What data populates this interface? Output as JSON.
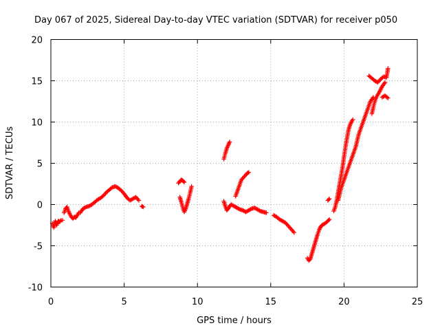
{
  "chart_data": {
    "type": "scatter",
    "title": "Day 067 of 2025, Sidereal Day-to-day VTEC variation (SDTVAR) for receiver p050",
    "xlabel": "GPS time / hours",
    "ylabel": "SDTVAR / TECUs",
    "xlim": [
      0,
      25
    ],
    "ylim": [
      -10,
      20
    ],
    "xticks": [
      "0",
      "5",
      "10",
      "15",
      "20",
      "25"
    ],
    "yticks": [
      "-10",
      "-5",
      "0",
      "5",
      "10",
      "15",
      "20"
    ],
    "grid": true,
    "marker": "+",
    "color": "#ff0000",
    "series": [
      {
        "name": "SDTVAR",
        "segments": [
          [
            [
              0.1,
              -2.3
            ],
            [
              0.2,
              -2.8
            ],
            [
              0.3,
              -2.0
            ],
            [
              0.4,
              -2.5
            ],
            [
              0.5,
              -2.0
            ],
            [
              0.6,
              -2.1
            ],
            [
              0.7,
              -1.9
            ],
            [
              0.8,
              -1.9
            ]
          ],
          [
            [
              0.9,
              -1.0
            ],
            [
              1.0,
              -0.5
            ],
            [
              1.1,
              -0.3
            ],
            [
              1.2,
              -0.8
            ],
            [
              1.3,
              -1.2
            ],
            [
              1.4,
              -1.5
            ],
            [
              1.5,
              -1.7
            ],
            [
              1.6,
              -1.5
            ],
            [
              1.7,
              -1.6
            ],
            [
              1.8,
              -1.3
            ],
            [
              1.9,
              -1.0
            ]
          ],
          [
            [
              2.0,
              -1.0
            ],
            [
              2.2,
              -0.5
            ],
            [
              2.4,
              -0.3
            ],
            [
              2.6,
              -0.2
            ],
            [
              2.8,
              0.0
            ],
            [
              3.0,
              0.3
            ],
            [
              3.2,
              0.6
            ],
            [
              3.4,
              0.8
            ],
            [
              3.6,
              1.1
            ],
            [
              3.8,
              1.5
            ],
            [
              4.0,
              1.8
            ],
            [
              4.2,
              2.1
            ],
            [
              4.4,
              2.2
            ],
            [
              4.6,
              2.0
            ],
            [
              4.8,
              1.7
            ],
            [
              5.0,
              1.3
            ],
            [
              5.2,
              0.8
            ],
            [
              5.4,
              0.5
            ],
            [
              5.6,
              0.7
            ],
            [
              5.8,
              0.9
            ],
            [
              6.0,
              0.5
            ]
          ],
          [
            [
              6.2,
              -0.2
            ],
            [
              6.3,
              -0.3
            ]
          ],
          [
            [
              8.7,
              2.6
            ],
            [
              8.8,
              2.8
            ],
            [
              8.9,
              3.0
            ],
            [
              9.0,
              2.9
            ],
            [
              9.1,
              2.7
            ]
          ],
          [
            [
              8.8,
              0.9
            ],
            [
              8.9,
              0.3
            ],
            [
              9.0,
              -0.4
            ],
            [
              9.1,
              -0.9
            ],
            [
              9.2,
              -0.5
            ],
            [
              9.3,
              0.1
            ],
            [
              9.4,
              0.7
            ],
            [
              9.5,
              1.4
            ],
            [
              9.6,
              2.2
            ]
          ],
          [
            [
              11.8,
              5.5
            ],
            [
              11.9,
              6.2
            ],
            [
              12.0,
              6.8
            ],
            [
              12.1,
              7.2
            ],
            [
              12.2,
              7.6
            ]
          ],
          [
            [
              11.8,
              0.4
            ],
            [
              11.9,
              -0.2
            ],
            [
              12.0,
              -0.7
            ],
            [
              12.1,
              -0.5
            ],
            [
              12.2,
              -0.2
            ],
            [
              12.3,
              0.0
            ],
            [
              12.5,
              -0.2
            ],
            [
              12.7,
              -0.4
            ],
            [
              12.9,
              -0.6
            ],
            [
              13.1,
              -0.7
            ],
            [
              13.3,
              -0.9
            ],
            [
              13.5,
              -0.7
            ],
            [
              13.7,
              -0.5
            ],
            [
              13.9,
              -0.4
            ],
            [
              14.1,
              -0.6
            ],
            [
              14.3,
              -0.8
            ],
            [
              14.5,
              -0.9
            ],
            [
              14.7,
              -1.0
            ]
          ],
          [
            [
              12.6,
              1.0
            ],
            [
              12.7,
              1.5
            ],
            [
              12.8,
              2.0
            ],
            [
              12.9,
              2.5
            ],
            [
              13.0,
              3.0
            ],
            [
              13.2,
              3.4
            ],
            [
              13.4,
              3.8
            ],
            [
              13.5,
              3.9
            ]
          ],
          [
            [
              15.2,
              -1.3
            ],
            [
              15.4,
              -1.5
            ],
            [
              15.6,
              -1.8
            ],
            [
              15.8,
              -2.0
            ],
            [
              16.0,
              -2.2
            ],
            [
              16.2,
              -2.6
            ],
            [
              16.4,
              -3.0
            ],
            [
              16.6,
              -3.4
            ]
          ],
          [
            [
              17.5,
              -6.5
            ],
            [
              17.6,
              -6.8
            ],
            [
              17.7,
              -6.6
            ],
            [
              17.8,
              -6.0
            ],
            [
              17.9,
              -5.4
            ],
            [
              18.0,
              -4.8
            ],
            [
              18.1,
              -4.2
            ],
            [
              18.2,
              -3.6
            ],
            [
              18.3,
              -3.1
            ],
            [
              18.4,
              -2.7
            ],
            [
              18.5,
              -2.5
            ],
            [
              18.7,
              -2.3
            ],
            [
              18.9,
              -2.0
            ],
            [
              19.0,
              -1.8
            ]
          ],
          [
            [
              18.9,
              0.5
            ],
            [
              19.0,
              0.7
            ]
          ],
          [
            [
              19.3,
              -0.8
            ],
            [
              19.4,
              -0.3
            ],
            [
              19.5,
              0.5
            ],
            [
              19.6,
              1.5
            ],
            [
              19.7,
              2.5
            ],
            [
              19.8,
              3.5
            ],
            [
              19.9,
              4.5
            ],
            [
              20.0,
              5.8
            ],
            [
              20.1,
              7.0
            ],
            [
              20.2,
              8.0
            ],
            [
              20.3,
              9.0
            ],
            [
              20.4,
              9.6
            ],
            [
              20.5,
              10.0
            ],
            [
              20.6,
              10.3
            ]
          ],
          [
            [
              19.6,
              0.5
            ],
            [
              19.8,
              2.0
            ],
            [
              20.0,
              3.0
            ],
            [
              20.2,
              4.0
            ],
            [
              20.4,
              5.0
            ],
            [
              20.6,
              6.0
            ],
            [
              20.8,
              7.0
            ],
            [
              21.0,
              8.5
            ],
            [
              21.2,
              9.5
            ],
            [
              21.4,
              10.5
            ],
            [
              21.6,
              11.5
            ],
            [
              21.8,
              12.5
            ],
            [
              22.0,
              13.0
            ]
          ],
          [
            [
              21.9,
              11.0
            ],
            [
              22.0,
              11.8
            ],
            [
              22.1,
              12.5
            ],
            [
              22.2,
              13.0
            ],
            [
              22.4,
              13.6
            ],
            [
              22.6,
              14.3
            ],
            [
              22.8,
              14.8
            ]
          ],
          [
            [
              21.7,
              15.6
            ],
            [
              21.9,
              15.3
            ],
            [
              22.1,
              15.0
            ],
            [
              22.3,
              14.8
            ],
            [
              22.5,
              15.2
            ],
            [
              22.7,
              15.5
            ],
            [
              22.9,
              15.4
            ],
            [
              23.0,
              16.5
            ]
          ],
          [
            [
              22.6,
              13.0
            ],
            [
              22.8,
              13.2
            ],
            [
              23.0,
              12.9
            ]
          ]
        ]
      }
    ]
  }
}
